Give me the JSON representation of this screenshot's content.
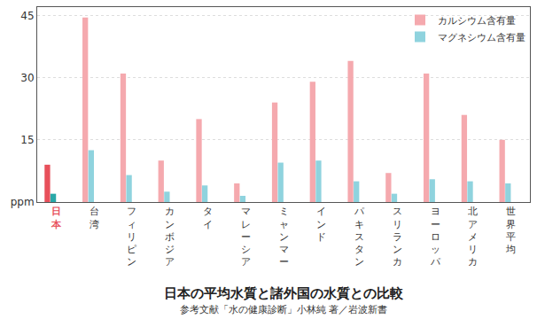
{
  "chart_data": {
    "type": "bar",
    "title": "日本の平均水質と諸外国の水質との比較",
    "subtitle": "参考文献「水の健康診断」小林純 著／岩波新書",
    "categories": [
      "日本",
      "台湾",
      "フィリピン",
      "カンボジア",
      "タイ",
      "マレーシア",
      "ミャンマー",
      "インド",
      "パキスタン",
      "スリランカ",
      "ヨーロッパ",
      "北アメリカ",
      "世界平均"
    ],
    "series": [
      {
        "name": "カルシウム含有量",
        "colors": [
          "#e8505b",
          "#f5a9ae",
          "#f5a9ae",
          "#f5a9ae",
          "#f5a9ae",
          "#f5a9ae",
          "#f5a9ae",
          "#f5a9ae",
          "#f5a9ae",
          "#f5a9ae",
          "#f5a9ae",
          "#f5a9ae",
          "#f5a9ae"
        ],
        "values": [
          9,
          44.5,
          31,
          10,
          20,
          4.5,
          24,
          29,
          34,
          7,
          31,
          21,
          15
        ]
      },
      {
        "name": "マグネシウム含有量",
        "colors": [
          "#2aa8a8",
          "#8fd3de",
          "#8fd3de",
          "#8fd3de",
          "#8fd3de",
          "#8fd3de",
          "#8fd3de",
          "#8fd3de",
          "#8fd3de",
          "#8fd3de",
          "#8fd3de",
          "#8fd3de",
          "#8fd3de"
        ],
        "values": [
          2,
          12.5,
          6.5,
          2.5,
          4,
          1.5,
          9.5,
          10,
          5,
          2,
          5.5,
          5,
          4.5
        ]
      }
    ],
    "ylim": [
      0,
      47
    ],
    "yticks": [
      {
        "value": 0,
        "label": "ppm"
      },
      15,
      30,
      45
    ],
    "grid": true,
    "legend": "top right"
  }
}
